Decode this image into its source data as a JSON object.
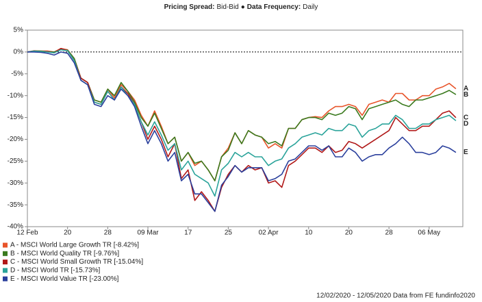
{
  "chart_data": {
    "type": "line",
    "header": [
      {
        "text": "Pricing Spread:",
        "bold": true
      },
      {
        "text": "Bid-Bid",
        "bold": false
      },
      {
        "text": "●",
        "bold": true
      },
      {
        "text": "Data Frequency:",
        "bold": true
      },
      {
        "text": "Daily",
        "bold": false
      }
    ],
    "footer": "12/02/2020 - 12/05/2020 Data from FE fundinfo2020",
    "x": [
      "12 Feb",
      "13 Feb",
      "14 Feb",
      "17 Feb",
      "18 Feb",
      "19 Feb",
      "20 Feb",
      "21 Feb",
      "24 Feb",
      "25 Feb",
      "26 Feb",
      "27 Feb",
      "28 Feb",
      "02 Mar",
      "03 Mar",
      "04 Mar",
      "05 Mar",
      "06 Mar",
      "09 Mar",
      "10 Mar",
      "11 Mar",
      "12 Mar",
      "13 Mar",
      "16 Mar",
      "17 Mar",
      "18 Mar",
      "19 Mar",
      "20 Mar",
      "23 Mar",
      "24 Mar",
      "25 Mar",
      "26 Mar",
      "27 Mar",
      "30 Mar",
      "31 Mar",
      "01 Apr",
      "02 Apr",
      "03 Apr",
      "06 Apr",
      "07 Apr",
      "08 Apr",
      "09 Apr",
      "10 Apr",
      "13 Apr",
      "14 Apr",
      "15 Apr",
      "16 Apr",
      "17 Apr",
      "20 Apr",
      "21 Apr",
      "22 Apr",
      "23 Apr",
      "24 Apr",
      "27 Apr",
      "28 Apr",
      "29 Apr",
      "30 Apr",
      "01 May",
      "04 May",
      "05 May",
      "06 May",
      "07 May",
      "08 May",
      "11 May",
      "12 May"
    ],
    "xticks": [
      {
        "value": "12 Feb",
        "label": "12 Feb"
      },
      {
        "value": "20 Feb",
        "label": "20"
      },
      {
        "value": "28 Feb",
        "label": "28"
      },
      {
        "value": "09 Mar",
        "label": "09 Mar"
      },
      {
        "value": "17 Mar",
        "label": "17"
      },
      {
        "value": "25 Mar",
        "label": "25"
      },
      {
        "value": "02 Apr",
        "label": "02 Apr"
      },
      {
        "value": "10 Apr",
        "label": "10"
      },
      {
        "value": "20 Apr",
        "label": "20"
      },
      {
        "value": "28 Apr",
        "label": "28"
      },
      {
        "value": "06 May",
        "label": "06 May"
      }
    ],
    "ylim": [
      -40,
      5
    ],
    "yticks": [
      {
        "value": 5,
        "label": "5%"
      },
      {
        "value": 0,
        "label": "0%"
      },
      {
        "value": -5,
        "label": "-5%"
      },
      {
        "value": -10,
        "label": "-10%"
      },
      {
        "value": -15,
        "label": "-15%"
      },
      {
        "value": -20,
        "label": "-20%"
      },
      {
        "value": -25,
        "label": "-25%"
      },
      {
        "value": -30,
        "label": "-30%"
      },
      {
        "value": -35,
        "label": "-35%"
      },
      {
        "value": -40,
        "label": "-40%"
      }
    ],
    "zero_line": true,
    "series": [
      {
        "name": "A - MSCI World Large Growth TR [-8.42%]",
        "end_label": "A",
        "color": "#e8542a",
        "values": [
          0,
          0.3,
          0.2,
          0.2,
          0,
          0.8,
          0.5,
          -1.5,
          -6,
          -7,
          -11,
          -11.5,
          -8.5,
          -10.5,
          -7.5,
          -9,
          -11,
          -14.5,
          -17,
          -13.5,
          -17,
          -21,
          -19.5,
          -25,
          -23,
          -26,
          -25,
          -27,
          -29.5,
          -24,
          -22,
          -18.5,
          -21,
          -18,
          -19,
          -19.5,
          -22,
          -21,
          -22,
          -17.5,
          -17.5,
          -15.5,
          -15,
          -14.8,
          -15,
          -13.5,
          -12.5,
          -12.5,
          -12,
          -12.5,
          -14.5,
          -12,
          -11.5,
          -11,
          -11.5,
          -9.5,
          -9.5,
          -11,
          -11,
          -10,
          -10,
          -8.5,
          -8,
          -7.2,
          -8.42
        ]
      },
      {
        "name": "B - MSCI World Quality TR [-9.76%]",
        "end_label": "B",
        "color": "#3a7a1e",
        "values": [
          0,
          0.2,
          0.2,
          0.1,
          0,
          0.6,
          0.4,
          -1.5,
          -6,
          -7,
          -11,
          -11.5,
          -8.5,
          -10,
          -7,
          -9,
          -11.5,
          -15,
          -17,
          -14,
          -17.5,
          -21,
          -19.5,
          -25,
          -23,
          -25.5,
          -25,
          -27,
          -29.5,
          -24,
          -22.5,
          -18.5,
          -21,
          -18,
          -19,
          -19.5,
          -21,
          -20.5,
          -21.5,
          -17.5,
          -17.5,
          -15.5,
          -15,
          -15,
          -15.5,
          -14,
          -14.5,
          -14,
          -12.5,
          -13,
          -15.5,
          -13,
          -12.5,
          -12,
          -11.5,
          -11,
          -12,
          -12.5,
          -11,
          -11,
          -10.5,
          -10,
          -9.5,
          -8.8,
          -9.76
        ]
      },
      {
        "name": "C - MSCI World Small Growth TR [-15.04%]",
        "end_label": "C",
        "color": "#b01818",
        "values": [
          0,
          0.2,
          0.1,
          0.1,
          -0.2,
          0.8,
          0.3,
          -2,
          -6,
          -7,
          -11.5,
          -12,
          -9,
          -11,
          -8,
          -9.5,
          -12,
          -16,
          -20,
          -17,
          -20,
          -24,
          -21,
          -29,
          -27,
          -34,
          -32,
          -34,
          -36.5,
          -31,
          -28,
          -26,
          -27.5,
          -26,
          -27,
          -26.5,
          -30,
          -29.5,
          -31,
          -26,
          -25,
          -23.5,
          -22,
          -22,
          -23,
          -21.5,
          -23,
          -22.5,
          -20.5,
          -21,
          -22,
          -21,
          -20,
          -19,
          -18,
          -15,
          -16.5,
          -18,
          -18,
          -17,
          -17,
          -15.5,
          -14,
          -13.5,
          -15.04
        ]
      },
      {
        "name": "D - MSCI World TR [-15.73%]",
        "end_label": "D",
        "color": "#2aa39a",
        "values": [
          0,
          0.2,
          0.1,
          0,
          -0.2,
          0.5,
          0.3,
          -2,
          -6.5,
          -7.5,
          -11.5,
          -12,
          -9,
          -11,
          -8,
          -10,
          -12,
          -16,
          -19,
          -16,
          -19,
          -22.5,
          -21,
          -27,
          -25,
          -28,
          -29,
          -30,
          -33,
          -27,
          -25.5,
          -23,
          -24,
          -23,
          -24,
          -24,
          -26,
          -25,
          -24.5,
          -22,
          -21,
          -19.5,
          -19,
          -18.5,
          -19,
          -17.5,
          -18,
          -18,
          -16.5,
          -17,
          -19.5,
          -18,
          -17.5,
          -16.5,
          -16.5,
          -14.5,
          -15.5,
          -17.5,
          -17.5,
          -16.5,
          -16.5,
          -15.5,
          -15,
          -14.5,
          -15.73
        ]
      },
      {
        "name": "E - MSCI World Value TR [-23.00%]",
        "end_label": "E",
        "color": "#2a3f9c",
        "values": [
          0,
          0,
          -0.1,
          -0.3,
          -0.7,
          0,
          -0.3,
          -2.5,
          -6.5,
          -7.5,
          -12,
          -12.5,
          -10,
          -11,
          -8.5,
          -10,
          -12.5,
          -17,
          -21,
          -18,
          -21,
          -25,
          -23,
          -29.5,
          -28,
          -32.5,
          -32.5,
          -34.5,
          -36.5,
          -30.5,
          -28.5,
          -26,
          -27.5,
          -26.5,
          -26.5,
          -26.5,
          -29.5,
          -29,
          -28,
          -25,
          -24.5,
          -23,
          -21.5,
          -21.5,
          -22.5,
          -21.5,
          -24,
          -24,
          -22,
          -23,
          -25,
          -24,
          -23.5,
          -23.5,
          -22,
          -21,
          -19.5,
          -21,
          -23,
          -23,
          -23.5,
          -23,
          -21.5,
          -22,
          -23
        ]
      }
    ]
  }
}
